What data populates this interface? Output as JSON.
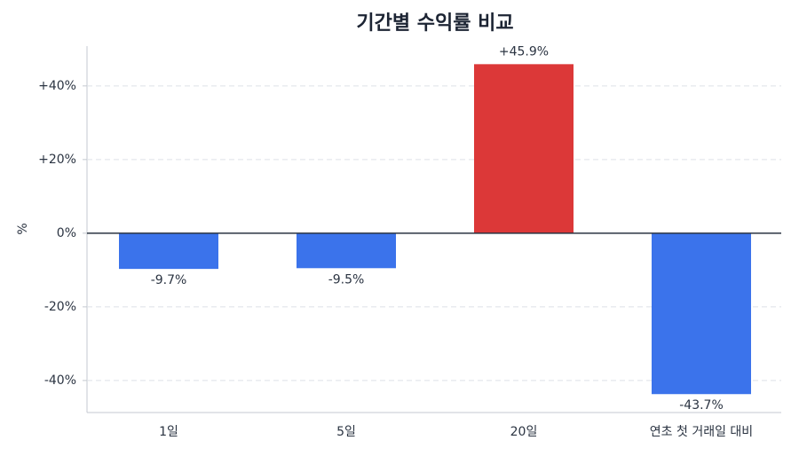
{
  "chart_data": {
    "type": "bar",
    "title": "기간별 수익률 비교",
    "ylabel": "%",
    "categories": [
      "1일",
      "5일",
      "20일",
      "연초 첫 거래일 대비"
    ],
    "values": [
      -9.7,
      -9.5,
      45.9,
      -43.7
    ],
    "value_labels": [
      "-9.7%",
      "-9.5%",
      "+45.9%",
      "-43.7%"
    ],
    "colors": [
      "#3b73eb",
      "#3b73eb",
      "#dc3838",
      "#3b73eb"
    ],
    "ylim": [
      -48.7,
      50.8
    ],
    "yticks": [
      {
        "value": -40,
        "label": "-40%"
      },
      {
        "value": -20,
        "label": "-20%"
      },
      {
        "value": 0,
        "label": "0%"
      },
      {
        "value": 20,
        "label": "+20%"
      },
      {
        "value": 40,
        "label": "+40%"
      }
    ],
    "grid": true
  }
}
